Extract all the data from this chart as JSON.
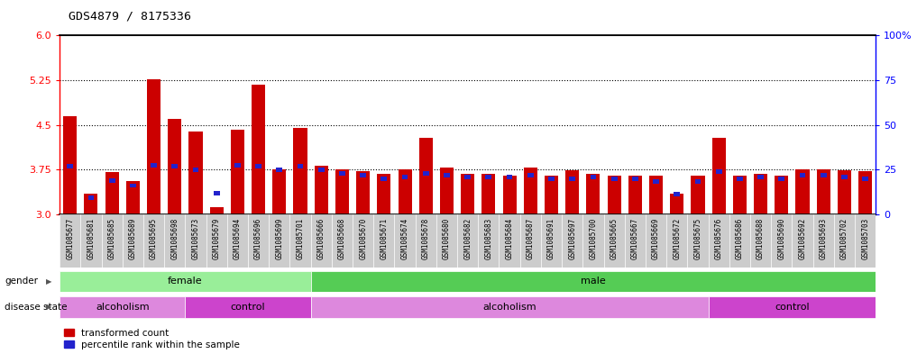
{
  "title": "GDS4879 / 8175336",
  "samples": [
    "GSM1085677",
    "GSM1085681",
    "GSM1085685",
    "GSM1085689",
    "GSM1085695",
    "GSM1085698",
    "GSM1085673",
    "GSM1085679",
    "GSM1085694",
    "GSM1085696",
    "GSM1085699",
    "GSM1085701",
    "GSM1085666",
    "GSM1085668",
    "GSM1085670",
    "GSM1085671",
    "GSM1085674",
    "GSM1085678",
    "GSM1085680",
    "GSM1085682",
    "GSM1085683",
    "GSM1085684",
    "GSM1085687",
    "GSM1085691",
    "GSM1085697",
    "GSM1085700",
    "GSM1085665",
    "GSM1085667",
    "GSM1085669",
    "GSM1085672",
    "GSM1085675",
    "GSM1085676",
    "GSM1085686",
    "GSM1085688",
    "GSM1085690",
    "GSM1085692",
    "GSM1085693",
    "GSM1085702",
    "GSM1085703"
  ],
  "red_values": [
    4.65,
    3.35,
    3.7,
    3.55,
    5.27,
    4.6,
    4.38,
    3.12,
    4.42,
    5.18,
    3.75,
    4.45,
    3.82,
    3.75,
    3.72,
    3.68,
    3.75,
    4.28,
    3.78,
    3.67,
    3.68,
    3.65,
    3.78,
    3.65,
    3.73,
    3.68,
    3.65,
    3.65,
    3.65,
    3.35,
    3.65,
    4.28,
    3.65,
    3.68,
    3.65,
    3.75,
    3.75,
    3.73,
    3.72
  ],
  "blue_values": [
    3.8,
    3.27,
    3.57,
    3.48,
    3.82,
    3.8,
    3.75,
    3.35,
    3.82,
    3.8,
    3.75,
    3.8,
    3.75,
    3.68,
    3.65,
    3.6,
    3.63,
    3.68,
    3.65,
    3.62,
    3.62,
    3.62,
    3.65,
    3.6,
    3.6,
    3.62,
    3.6,
    3.6,
    3.55,
    3.33,
    3.55,
    3.72,
    3.6,
    3.62,
    3.6,
    3.65,
    3.65,
    3.62,
    3.6
  ],
  "gender_female_range": [
    0,
    11
  ],
  "gender_male_range": [
    12,
    38
  ],
  "disease_regions": [
    {
      "start": 0,
      "end": 5,
      "label": "alcoholism",
      "color": "#dd88dd"
    },
    {
      "start": 6,
      "end": 11,
      "label": "control",
      "color": "#cc44cc"
    },
    {
      "start": 12,
      "end": 30,
      "label": "alcoholism",
      "color": "#dd88dd"
    },
    {
      "start": 31,
      "end": 38,
      "label": "control",
      "color": "#cc44cc"
    }
  ],
  "ylim": [
    3.0,
    6.0
  ],
  "yticks_left": [
    3.0,
    3.75,
    4.5,
    5.25,
    6.0
  ],
  "ytick_right_vals": [
    0,
    25,
    50,
    75,
    100
  ],
  "ytick_right_labels": [
    "0",
    "25",
    "50",
    "75",
    "100%"
  ],
  "dotted_lines": [
    3.75,
    4.5,
    5.25
  ],
  "bar_color_red": "#cc0000",
  "bar_color_blue": "#2222cc",
  "gender_female_color": "#99ee99",
  "gender_male_color": "#55cc55",
  "tick_label_bg": "#cccccc",
  "legend_red_label": "transformed count",
  "legend_blue_label": "percentile rank within the sample"
}
